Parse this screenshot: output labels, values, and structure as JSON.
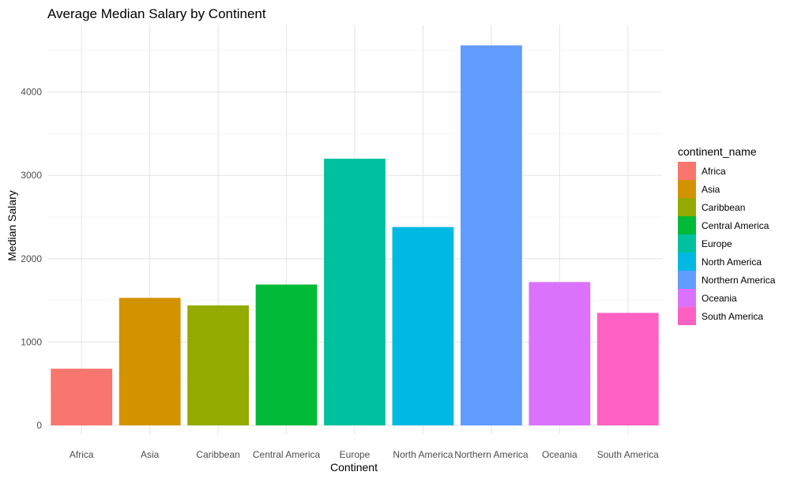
{
  "chart_data": {
    "type": "bar",
    "title": "Average Median Salary by Continent",
    "xlabel": "Continent",
    "ylabel": "Median Salary",
    "categories": [
      "Africa",
      "Asia",
      "Caribbean",
      "Central America",
      "Europe",
      "North America",
      "Northern America",
      "Oceania",
      "South America"
    ],
    "values": [
      680,
      1530,
      1440,
      1690,
      3200,
      2380,
      4560,
      1720,
      1350
    ],
    "colors": [
      "#F8766D",
      "#D39200",
      "#93AA00",
      "#00BA38",
      "#00C19F",
      "#00B9E3",
      "#619CFF",
      "#DB72FB",
      "#FF61C3"
    ],
    "ylim": [
      0,
      4800
    ],
    "yticks": [
      0,
      1000,
      2000,
      3000,
      4000
    ],
    "grid": true,
    "legend": {
      "title": "continent_name",
      "placement": "right"
    }
  }
}
